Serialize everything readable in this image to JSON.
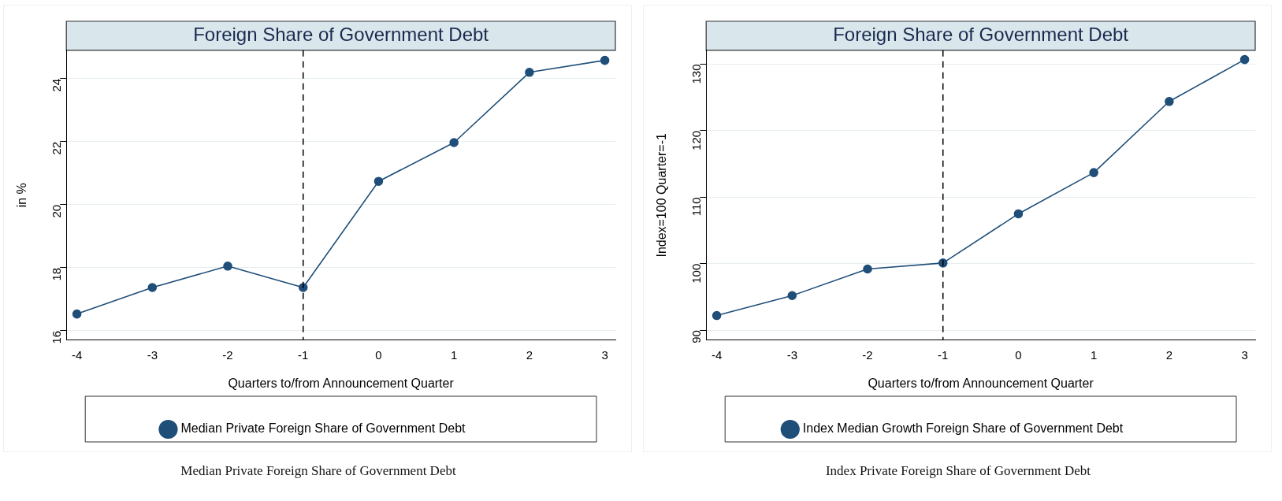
{
  "chart_data": [
    {
      "type": "line",
      "title": "Foreign Share of Government Debt",
      "xlabel": "Quarters to/from Announcement Quarter",
      "ylabel": "in %",
      "x": [
        -4,
        -3,
        -2,
        -1,
        0,
        1,
        2,
        3
      ],
      "series": [
        {
          "name": "Median Private Foreign Share of Government Debt",
          "color": "#1f4e79",
          "values": [
            16.53,
            17.37,
            18.05,
            17.37,
            20.74,
            21.97,
            24.2,
            24.58
          ]
        }
      ],
      "xlim": [
        -4.14,
        3.14
      ],
      "xticks": [
        -4,
        -3,
        -2,
        -1,
        0,
        1,
        2,
        3
      ],
      "ylim": [
        15.7,
        24.9
      ],
      "yticks": [
        16,
        18,
        20,
        22,
        24
      ],
      "ref_lines": [
        {
          "axis": "x",
          "value": -1,
          "line_style": "dashed",
          "color": "#000000"
        }
      ],
      "grid": "y",
      "legend": "bottom",
      "marker": "circle",
      "annotations": [
        "Median Private Foreign Share of Government Debt"
      ]
    },
    {
      "type": "line",
      "title": "Foreign Share of Government Debt",
      "xlabel": "Quarters to/from Announcement Quarter",
      "ylabel": "Index=100 Quarter=-1",
      "x": [
        -4,
        -3,
        -2,
        -1,
        0,
        1,
        2,
        3
      ],
      "series": [
        {
          "name": "Index Median Growth Foreign Share of Government Debt",
          "color": "#1f4e79",
          "values": [
            92.2,
            95.2,
            99.2,
            100.1,
            107.5,
            113.7,
            124.4,
            130.7
          ]
        }
      ],
      "xlim": [
        -4.14,
        3.14
      ],
      "xticks": [
        -4,
        -3,
        -2,
        -1,
        0,
        1,
        2,
        3
      ],
      "ylim": [
        88.5,
        132.1
      ],
      "yticks": [
        90,
        100,
        110,
        120,
        130
      ],
      "ref_lines": [
        {
          "axis": "x",
          "value": -1,
          "line_style": "dashed",
          "color": "#000000"
        }
      ],
      "grid": "y",
      "legend": "bottom",
      "marker": "circle",
      "annotations": [
        "Index Private Foreign Share of Government Debt"
      ]
    }
  ]
}
